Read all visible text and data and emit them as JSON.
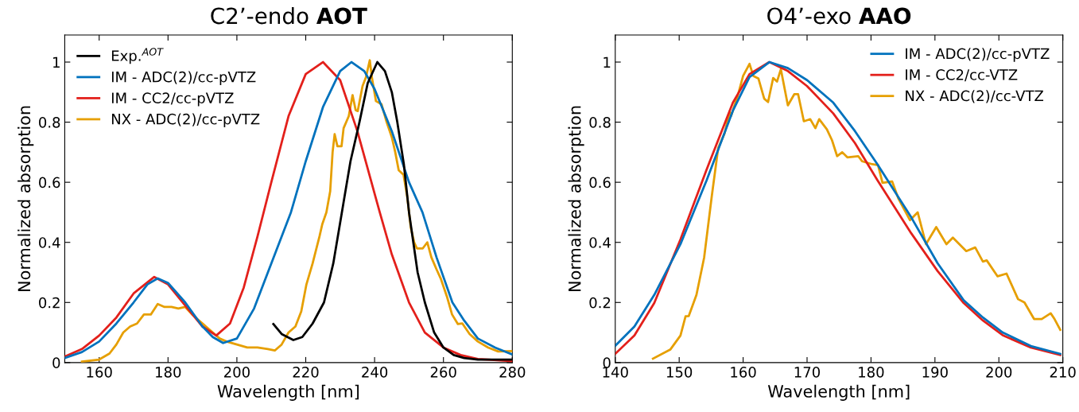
{
  "chart_data": [
    {
      "type": "line",
      "title": "C2’-endo AOT",
      "xlabel": "Wavelength [nm]",
      "ylabel": "Normalized absorption",
      "xlim": [
        150,
        280
      ],
      "xticks": [
        160,
        180,
        200,
        220,
        240,
        260,
        280
      ],
      "ylim": [
        0,
        1.09
      ],
      "yticks": [
        0,
        0.2,
        0.4,
        0.6,
        0.8,
        1
      ],
      "grid": false,
      "legend": "top left",
      "marker": "none",
      "line_style": "solid",
      "series": [
        {
          "name": "Exp.$^{AOT}$",
          "color": "#000000",
          "x": [
            210.6,
            213,
            216.4,
            219,
            222,
            225.3,
            228,
            230.5,
            233,
            235.6,
            238,
            240.8,
            243,
            245,
            246.6,
            248.5,
            250,
            252.5,
            254.6,
            257.3,
            260,
            263,
            266,
            270,
            275,
            280
          ],
          "values": [
            0.128,
            0.095,
            0.075,
            0.085,
            0.13,
            0.2,
            0.33,
            0.5,
            0.67,
            0.8,
            0.93,
            1.0,
            0.97,
            0.9,
            0.8,
            0.66,
            0.5,
            0.3,
            0.2,
            0.1,
            0.05,
            0.025,
            0.015,
            0.01,
            0.01,
            0.01
          ]
        },
        {
          "name": "IM - ADC(2)/cc-pVTZ",
          "color": "#0072bd",
          "x": [
            150,
            155,
            160,
            165,
            170,
            174,
            177,
            180,
            185,
            190,
            193,
            196,
            200,
            205,
            210,
            215.7,
            220,
            225,
            230,
            233.3,
            237,
            240,
            245,
            250,
            253.9,
            258,
            262.6,
            266,
            270,
            275,
            280
          ],
          "values": [
            0.015,
            0.035,
            0.07,
            0.13,
            0.2,
            0.26,
            0.28,
            0.265,
            0.2,
            0.12,
            0.085,
            0.065,
            0.08,
            0.18,
            0.33,
            0.5,
            0.67,
            0.85,
            0.97,
            1.0,
            0.97,
            0.91,
            0.77,
            0.6,
            0.5,
            0.35,
            0.2,
            0.14,
            0.08,
            0.05,
            0.027
          ]
        },
        {
          "name": "IM - CC2/cc-pVTZ",
          "color": "#e3201b",
          "x": [
            150,
            155,
            160,
            165,
            170,
            176,
            180,
            185,
            190,
            194,
            198,
            202,
            206,
            210,
            215,
            220,
            225,
            230,
            235,
            241.5,
            245,
            250,
            254.6,
            260,
            265,
            270,
            280
          ],
          "values": [
            0.02,
            0.045,
            0.09,
            0.15,
            0.23,
            0.285,
            0.26,
            0.19,
            0.12,
            0.09,
            0.13,
            0.25,
            0.42,
            0.6,
            0.82,
            0.96,
            1.0,
            0.94,
            0.77,
            0.5,
            0.36,
            0.2,
            0.1,
            0.05,
            0.025,
            0.012,
            0.005
          ]
        },
        {
          "name": "NX - ADC(2)/cc-pVTZ",
          "color": "#e69f00",
          "x": [
            155,
            160,
            163,
            165,
            167,
            169,
            171,
            173,
            175,
            177,
            179,
            181,
            183,
            185,
            187,
            189,
            191,
            193,
            195,
            197,
            200,
            203,
            206,
            209,
            211,
            213,
            215,
            217,
            218.7,
            220.2,
            222,
            224,
            224.8,
            226,
            227.1,
            227.8,
            228.4,
            229.2,
            230.4,
            231,
            232.5,
            233.6,
            234.5,
            235.1,
            236.5,
            237.5,
            238.6,
            239.2,
            240.4,
            242,
            243.5,
            245,
            246,
            247,
            248.4,
            249.5,
            250.5,
            251.5,
            252.3,
            254,
            255.3,
            256.5,
            258,
            259.2,
            261,
            262.5,
            264.2,
            265.5,
            267.6,
            270,
            273,
            275.9,
            280
          ],
          "values": [
            0.003,
            0.01,
            0.03,
            0.06,
            0.1,
            0.12,
            0.13,
            0.16,
            0.16,
            0.195,
            0.185,
            0.185,
            0.18,
            0.185,
            0.16,
            0.14,
            0.12,
            0.1,
            0.08,
            0.07,
            0.06,
            0.05,
            0.05,
            0.045,
            0.04,
            0.06,
            0.1,
            0.12,
            0.17,
            0.26,
            0.33,
            0.42,
            0.46,
            0.5,
            0.57,
            0.7,
            0.76,
            0.72,
            0.72,
            0.78,
            0.82,
            0.89,
            0.84,
            0.837,
            0.92,
            0.95,
            1.006,
            0.95,
            0.87,
            0.86,
            0.8,
            0.75,
            0.7,
            0.64,
            0.625,
            0.55,
            0.45,
            0.4,
            0.38,
            0.38,
            0.4,
            0.35,
            0.31,
            0.28,
            0.22,
            0.16,
            0.128,
            0.13,
            0.095,
            0.07,
            0.05,
            0.037,
            0.038
          ]
        }
      ]
    },
    {
      "type": "line",
      "title": "O4’-exo AAO",
      "xlabel": "Wavelength [nm]",
      "ylabel": "Normalized absorption",
      "xlim": [
        140,
        210
      ],
      "xticks": [
        140,
        150,
        160,
        170,
        180,
        190,
        200,
        210
      ],
      "ylim": [
        0,
        1.09
      ],
      "yticks": [
        0,
        0.2,
        0.4,
        0.6,
        0.8,
        1
      ],
      "grid": false,
      "legend": "top right",
      "marker": "none",
      "line_style": "solid",
      "series": [
        {
          "name": "IM - ADC(2)/cc-pVTZ",
          "color": "#0072bd",
          "x": [
            140,
            143,
            146.1,
            150.2,
            154.3,
            158.4,
            161,
            164.1,
            167,
            170,
            174.1,
            177.5,
            181,
            186.3,
            190.4,
            194.5,
            197.5,
            200.6,
            205,
            209.6
          ],
          "values": [
            0.056,
            0.12,
            0.225,
            0.394,
            0.607,
            0.838,
            0.95,
            1.0,
            0.98,
            0.94,
            0.865,
            0.77,
            0.66,
            0.483,
            0.331,
            0.207,
            0.15,
            0.1,
            0.055,
            0.029
          ]
        },
        {
          "name": "IM - CC2/cc-VTZ",
          "color": "#e3201b",
          "x": [
            140,
            143,
            146.1,
            150.2,
            154.3,
            158.4,
            161,
            164.1,
            167,
            170,
            174.1,
            177.5,
            181,
            186.3,
            190.4,
            194.5,
            197.5,
            200.6,
            205,
            209.6
          ],
          "values": [
            0.029,
            0.09,
            0.198,
            0.41,
            0.643,
            0.865,
            0.96,
            1.0,
            0.97,
            0.92,
            0.829,
            0.73,
            0.607,
            0.43,
            0.305,
            0.198,
            0.14,
            0.091,
            0.05,
            0.025
          ]
        },
        {
          "name": "NX - ADC(2)/cc-VTZ",
          "color": "#e69f00",
          "x": [
            145.9,
            148.6,
            150.2,
            151,
            151.5,
            152.7,
            153.9,
            155.1,
            156.1,
            157.1,
            157.9,
            158.1,
            159.2,
            160,
            161,
            161.6,
            162.4,
            163.3,
            163.9,
            164.7,
            165.3,
            165.9,
            167,
            168,
            168.6,
            169.5,
            170.5,
            171.3,
            171.9,
            173.1,
            173.9,
            174.7,
            175.5,
            176.3,
            178,
            178.6,
            180.2,
            181.1,
            181.8,
            183.3,
            184.3,
            186.1,
            187.3,
            188.6,
            190.2,
            191.8,
            192.8,
            194.9,
            196.3,
            197.5,
            198.1,
            199.8,
            201.2,
            203,
            204,
            205.5,
            206.7,
            208.1,
            208.7,
            209.6
          ],
          "values": [
            0.013,
            0.043,
            0.09,
            0.154,
            0.155,
            0.225,
            0.349,
            0.554,
            0.714,
            0.763,
            0.834,
            0.82,
            0.891,
            0.954,
            0.994,
            0.954,
            0.945,
            0.878,
            0.867,
            0.947,
            0.935,
            0.976,
            0.856,
            0.893,
            0.893,
            0.803,
            0.81,
            0.78,
            0.81,
            0.776,
            0.74,
            0.687,
            0.7,
            0.683,
            0.687,
            0.67,
            0.66,
            0.657,
            0.598,
            0.603,
            0.545,
            0.474,
            0.5,
            0.394,
            0.451,
            0.394,
            0.416,
            0.371,
            0.383,
            0.336,
            0.34,
            0.287,
            0.296,
            0.211,
            0.2,
            0.145,
            0.145,
            0.164,
            0.145,
            0.109
          ]
        }
      ]
    }
  ]
}
